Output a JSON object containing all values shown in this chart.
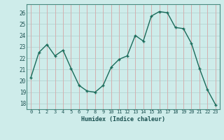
{
  "x": [
    0,
    1,
    2,
    3,
    4,
    5,
    6,
    7,
    8,
    9,
    10,
    11,
    12,
    13,
    14,
    15,
    16,
    17,
    18,
    19,
    20,
    21,
    22,
    23
  ],
  "y": [
    20.3,
    22.5,
    23.2,
    22.2,
    22.7,
    21.1,
    19.6,
    19.1,
    19.0,
    19.6,
    21.2,
    21.9,
    22.2,
    24.0,
    23.5,
    25.7,
    26.1,
    26.0,
    24.7,
    24.6,
    23.3,
    21.1,
    19.2,
    17.9
  ],
  "line_color": "#1a6b5a",
  "marker_color": "#1a6b5a",
  "bg_color": "#ceecea",
  "grid_h_color": "#b8d8d6",
  "grid_v_color": "#d4b0b0",
  "xlabel": "Humidex (Indice chaleur)",
  "ylabel_ticks": [
    18,
    19,
    20,
    21,
    22,
    23,
    24,
    25,
    26
  ],
  "ylim": [
    17.5,
    26.75
  ],
  "xlim": [
    -0.5,
    23.5
  ]
}
